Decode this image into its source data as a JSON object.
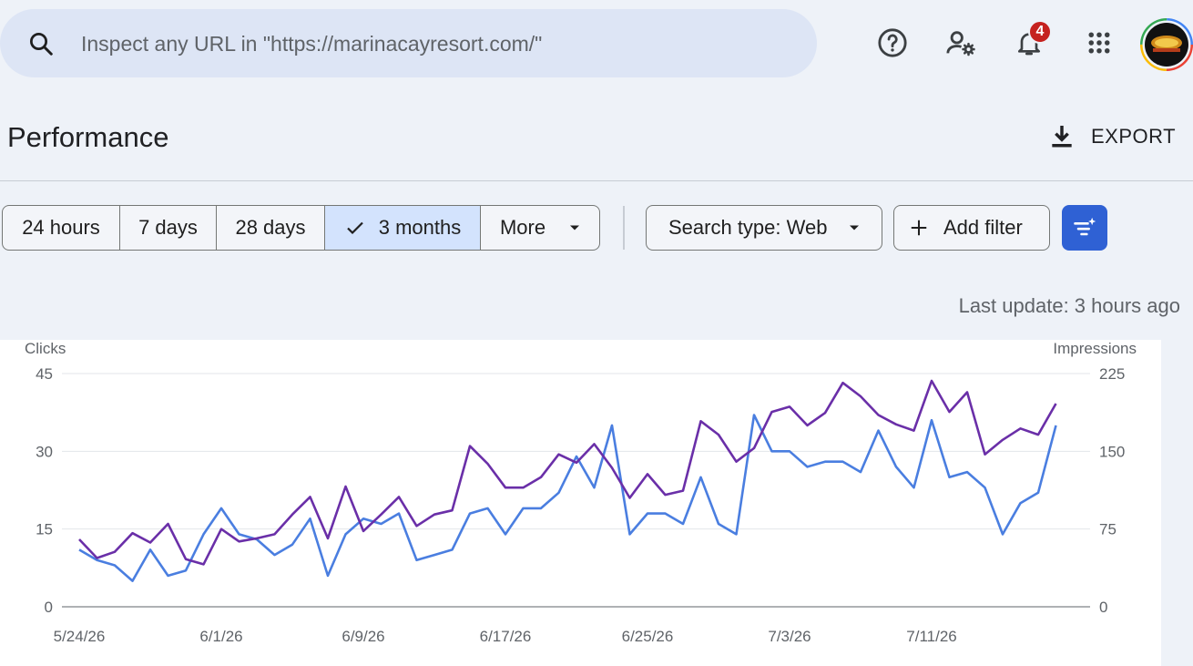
{
  "search": {
    "placeholder": "Inspect any URL in \"https://marinacayresort.com/\"",
    "icon": "search-icon"
  },
  "topbar": {
    "notification_count": "4",
    "icons": [
      "help-icon",
      "manage-users-icon",
      "bell-icon",
      "apps-grid-icon"
    ]
  },
  "page": {
    "title": "Performance",
    "export_label": "EXPORT"
  },
  "date_range": {
    "options": [
      "24 hours",
      "7 days",
      "28 days",
      "3 months",
      "More"
    ],
    "selected": "3 months"
  },
  "filters": {
    "search_type": "Search type: Web",
    "add_filter": "Add filter"
  },
  "last_update": "Last update: 3 hours ago",
  "colors": {
    "clicks": "#4a7ee0",
    "impressions": "#6a2fa8",
    "accent": "#2f61d4",
    "badge": "#c5221f"
  },
  "chart_data": {
    "type": "line",
    "left_axis_label": "Clicks",
    "right_axis_label": "Impressions",
    "left_ticks": [
      "0",
      "15",
      "30",
      "45"
    ],
    "right_ticks": [
      "0",
      "75",
      "150",
      "225"
    ],
    "ylim_left": [
      0,
      45
    ],
    "ylim_right": [
      0,
      225
    ],
    "x_tick_labels": [
      "5/24/26",
      "6/1/26",
      "6/9/26",
      "6/17/26",
      "6/25/26",
      "7/3/26",
      "7/11/26"
    ],
    "start_date": "5/24/26",
    "series": [
      {
        "name": "Clicks",
        "axis": "left",
        "values": [
          11,
          9,
          8,
          5,
          11,
          6,
          7,
          14,
          19,
          14,
          13,
          10,
          12,
          17,
          6,
          14,
          17,
          16,
          18,
          9,
          10,
          11,
          18,
          19,
          14,
          19,
          19,
          22,
          29,
          23,
          35,
          14,
          18,
          18,
          16,
          25,
          16,
          14,
          37,
          30,
          30,
          27,
          28,
          28,
          26,
          34,
          27,
          23,
          36,
          25,
          26,
          23,
          14,
          20,
          22,
          35
        ]
      },
      {
        "name": "Impressions",
        "axis": "right",
        "values": [
          65,
          47,
          53,
          71,
          62,
          80,
          46,
          41,
          75,
          63,
          66,
          70,
          89,
          106,
          66,
          116,
          73,
          89,
          106,
          78,
          89,
          93,
          155,
          138,
          115,
          115,
          125,
          147,
          139,
          157,
          134,
          105,
          128,
          108,
          112,
          179,
          166,
          140,
          153,
          188,
          193,
          175,
          187,
          216,
          203,
          185,
          176,
          170,
          218,
          188,
          207,
          147,
          161,
          172,
          166,
          196
        ]
      }
    ]
  }
}
